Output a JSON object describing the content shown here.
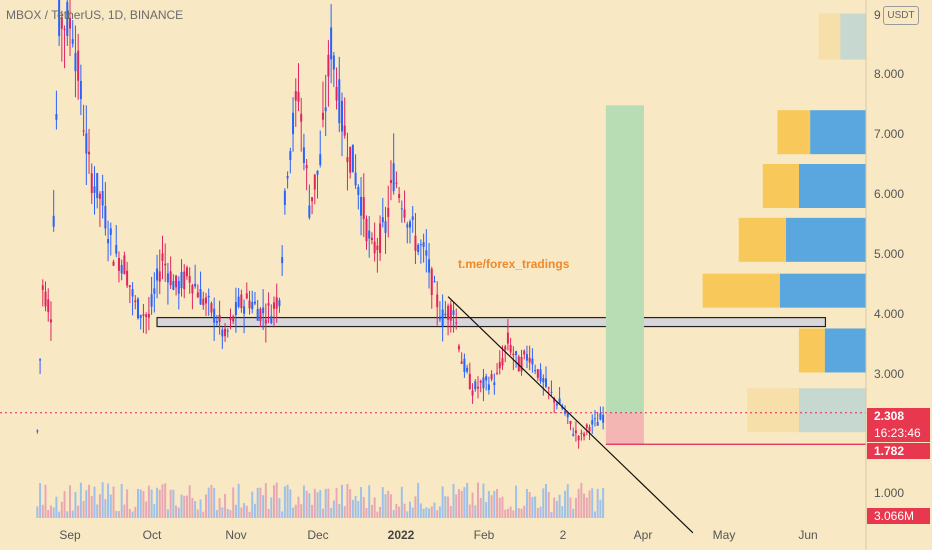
{
  "header": {
    "symbol": "MBOX / TetherUS, 1D, BINANCE",
    "currency": "USDT",
    "top_tick": "9"
  },
  "watermark": "t.me/forex_tradings",
  "badges": {
    "price": "2.308",
    "countdown": "16:23:46",
    "stop": "1.782",
    "volume": "3.066M"
  },
  "colors": {
    "background": "#f8e9c4",
    "up": "#2962ff",
    "down": "#e0245e",
    "target_zone": "#b8dcb4",
    "stop_zone": "#f4b6b2",
    "vp_up": "#5aa7e0",
    "vp_down": "#f8c95a",
    "badge_red": "#e8384f"
  },
  "chart_data": {
    "type": "candlestick",
    "title": "MBOX / TetherUS, 1D, BINANCE",
    "y_ticks": [
      "8.000",
      "7.000",
      "6.000",
      "5.000",
      "4.000",
      "3.000",
      "1.000"
    ],
    "x_ticks": [
      "Sep",
      "Oct",
      "Nov",
      "Dec",
      "2022",
      "Feb",
      "2",
      "Apr",
      "May",
      "Jun"
    ],
    "ylim": [
      0.1,
      9.3
    ],
    "price_path": [
      {
        "date": "2021-08-20",
        "price": 2.0
      },
      {
        "date": "2021-08-22",
        "price": 4.4
      },
      {
        "date": "2021-08-25",
        "price": 4.0
      },
      {
        "date": "2021-08-28",
        "price": 8.9
      },
      {
        "date": "2021-09-02",
        "price": 8.8
      },
      {
        "date": "2021-09-08",
        "price": 6.4
      },
      {
        "date": "2021-09-13",
        "price": 5.8
      },
      {
        "date": "2021-09-17",
        "price": 5.0
      },
      {
        "date": "2021-09-21",
        "price": 4.8
      },
      {
        "date": "2021-09-25",
        "price": 4.1
      },
      {
        "date": "2021-09-30",
        "price": 3.9
      },
      {
        "date": "2021-10-05",
        "price": 4.9
      },
      {
        "date": "2021-10-10",
        "price": 4.4
      },
      {
        "date": "2021-10-15",
        "price": 4.6
      },
      {
        "date": "2021-10-20",
        "price": 4.2
      },
      {
        "date": "2021-10-25",
        "price": 3.9
      },
      {
        "date": "2021-10-28",
        "price": 3.55
      },
      {
        "date": "2021-11-02",
        "price": 4.1
      },
      {
        "date": "2021-11-06",
        "price": 4.2
      },
      {
        "date": "2021-11-10",
        "price": 4.0
      },
      {
        "date": "2021-11-14",
        "price": 4.0
      },
      {
        "date": "2021-11-17",
        "price": 4.3
      },
      {
        "date": "2021-11-20",
        "price": 6.5
      },
      {
        "date": "2021-11-24",
        "price": 7.7
      },
      {
        "date": "2021-11-28",
        "price": 5.8
      },
      {
        "date": "2021-12-02",
        "price": 6.5
      },
      {
        "date": "2021-12-06",
        "price": 8.5
      },
      {
        "date": "2021-12-10",
        "price": 7.2
      },
      {
        "date": "2021-12-16",
        "price": 6.1
      },
      {
        "date": "2021-12-21",
        "price": 5.0
      },
      {
        "date": "2021-12-26",
        "price": 5.4
      },
      {
        "date": "2021-12-29",
        "price": 6.3
      },
      {
        "date": "2022-01-02",
        "price": 5.8
      },
      {
        "date": "2022-01-06",
        "price": 5.2
      },
      {
        "date": "2022-01-10",
        "price": 4.9
      },
      {
        "date": "2022-01-13",
        "price": 4.3
      },
      {
        "date": "2022-01-16",
        "price": 3.9
      },
      {
        "date": "2022-01-20",
        "price": 4.1
      },
      {
        "date": "2022-01-23",
        "price": 3.2
      },
      {
        "date": "2022-01-27",
        "price": 2.7
      },
      {
        "date": "2022-02-01",
        "price": 2.8
      },
      {
        "date": "2022-02-05",
        "price": 2.9
      },
      {
        "date": "2022-02-09",
        "price": 3.5
      },
      {
        "date": "2022-02-13",
        "price": 3.1
      },
      {
        "date": "2022-02-17",
        "price": 3.3
      },
      {
        "date": "2022-02-21",
        "price": 2.9
      },
      {
        "date": "2022-02-25",
        "price": 2.6
      },
      {
        "date": "2022-03-01",
        "price": 2.4
      },
      {
        "date": "2022-03-05",
        "price": 2.0
      },
      {
        "date": "2022-03-08",
        "price": 1.9
      },
      {
        "date": "2022-03-11",
        "price": 2.1
      },
      {
        "date": "2022-03-14",
        "price": 2.15
      },
      {
        "date": "2022-03-17",
        "price": 2.308
      }
    ],
    "volume_profile": [
      {
        "price": 8.6,
        "up": 0.3,
        "down": 0.25
      },
      {
        "price": 7.0,
        "up": 0.65,
        "down": 0.38
      },
      {
        "price": 6.1,
        "up": 0.78,
        "down": 0.42
      },
      {
        "price": 5.2,
        "up": 0.93,
        "down": 0.55
      },
      {
        "price": 4.35,
        "up": 1.0,
        "down": 0.9
      },
      {
        "price": 3.35,
        "up": 0.48,
        "down": 0.3
      },
      {
        "price": 2.35,
        "up": 0.78,
        "down": 0.6
      }
    ],
    "support_zone": [
      3.75,
      3.9
    ],
    "trendline": [
      {
        "date": "2022-01-18",
        "price": 4.25
      },
      {
        "date": "2022-04-18",
        "price": 0.3
      }
    ],
    "target_zone": {
      "from": "2022-03-17",
      "to": "2022-03-31",
      "low": 2.308,
      "high": 7.45
    },
    "stop_zone": {
      "from": "2022-03-17",
      "to": "2022-03-31",
      "low": 1.782,
      "high": 2.308
    },
    "current_price": 2.308,
    "stop_price": 1.782
  }
}
